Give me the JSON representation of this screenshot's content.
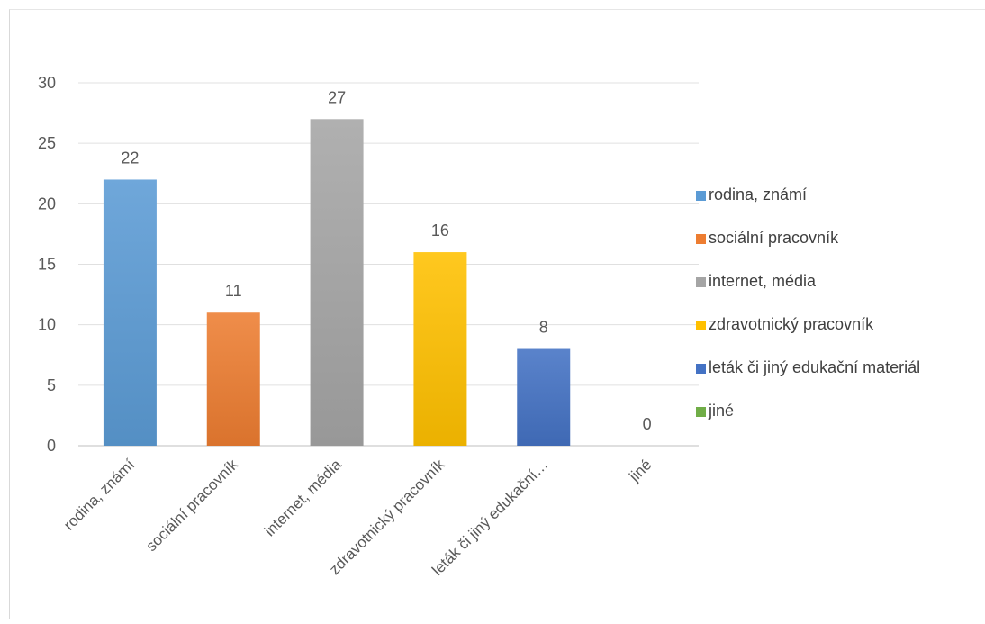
{
  "chart_data": {
    "type": "bar",
    "title": "",
    "xlabel": "",
    "ylabel": "",
    "categories": [
      "rodina, známí",
      "sociální pracovník",
      "internet, média",
      "zdravotnický pracovník",
      "leták či jiný edukační…",
      "jiné"
    ],
    "legend_labels": [
      "rodina, známí",
      "sociální pracovník",
      "internet, média",
      "zdravotnický pracovník",
      "leták či jiný edukační materiál",
      "jiné"
    ],
    "values": [
      22,
      11,
      27,
      16,
      8,
      0
    ],
    "colors": [
      "#5b9bd5",
      "#ed7d31",
      "#a5a5a5",
      "#ffc000",
      "#4472c4",
      "#70ad47"
    ],
    "ylim": [
      0,
      30
    ],
    "yticks": [
      0,
      5,
      10,
      15,
      20,
      25,
      30
    ],
    "grid": true,
    "legend_position": "right",
    "data_labels": true
  }
}
